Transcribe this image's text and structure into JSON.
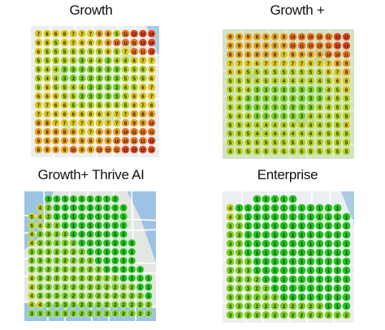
{
  "panels": [
    {
      "id": "growth",
      "title": "Growth",
      "map_theme": "city",
      "colors": {
        "land": "#eceff1",
        "road": "#ffffff",
        "green": "#cfe6c4",
        "water": "#a9cbe6"
      },
      "grid": [
        [
          7,
          6,
          6,
          6,
          7,
          7,
          7,
          9,
          8,
          5,
          11,
          13,
          14,
          14
        ],
        [
          6,
          6,
          5,
          6,
          7,
          6,
          6,
          7,
          8,
          10,
          11,
          11,
          13,
          14
        ],
        [
          6,
          5,
          5,
          5,
          5,
          5,
          5,
          5,
          6,
          5,
          7,
          11,
          11,
          12
        ],
        [
          5,
          5,
          5,
          5,
          5,
          3,
          4,
          4,
          3,
          4,
          4,
          6,
          7,
          7
        ],
        [
          5,
          4,
          4,
          3,
          3,
          3,
          3,
          3,
          3,
          3,
          5,
          5,
          5,
          6
        ],
        [
          5,
          4,
          4,
          3,
          3,
          3,
          3,
          3,
          3,
          3,
          5,
          5,
          5,
          6
        ],
        [
          5,
          6,
          5,
          5,
          4,
          4,
          3,
          3,
          3,
          3,
          4,
          5,
          6,
          7
        ],
        [
          6,
          6,
          6,
          5,
          5,
          3,
          3,
          3,
          3,
          3,
          5,
          6,
          6,
          7
        ],
        [
          7,
          7,
          6,
          6,
          5,
          5,
          5,
          5,
          5,
          5,
          5,
          6,
          7,
          6
        ],
        [
          7,
          7,
          6,
          6,
          6,
          6,
          6,
          6,
          6,
          7,
          7,
          8,
          8,
          8
        ],
        [
          8,
          8,
          7,
          7,
          7,
          7,
          7,
          7,
          7,
          7,
          8,
          9,
          9,
          10
        ],
        [
          9,
          8,
          8,
          8,
          8,
          7,
          7,
          8,
          8,
          9,
          10,
          11,
          11,
          11
        ],
        [
          9,
          8,
          8,
          9,
          9,
          9,
          8,
          9,
          9,
          10,
          10,
          11,
          11,
          12
        ],
        [
          8,
          8,
          9,
          9,
          10,
          9,
          9,
          10,
          10,
          11,
          12,
          13,
          12,
          12
        ]
      ]
    },
    {
      "id": "growth-plus",
      "title": "Growth +",
      "map_theme": "park",
      "colors": {
        "land": "#cfe3c6",
        "road": "#e6efe0",
        "green": "#b5d8a6",
        "water": "#a9cbe6"
      },
      "grid": [
        [
          9,
          9,
          9,
          8,
          9,
          8,
          8,
          10,
          10,
          10,
          10,
          11,
          12,
          12
        ],
        [
          9,
          9,
          8,
          8,
          8,
          8,
          9,
          10,
          11,
          10,
          10,
          11,
          12,
          12
        ],
        [
          8,
          8,
          8,
          8,
          8,
          8,
          7,
          8,
          9,
          8,
          9,
          10,
          10,
          11
        ],
        [
          7,
          7,
          7,
          6,
          7,
          7,
          7,
          7,
          7,
          6,
          7,
          7,
          8,
          9
        ],
        [
          6,
          6,
          5,
          5,
          5,
          5,
          5,
          5,
          5,
          5,
          5,
          6,
          7,
          8
        ],
        [
          5,
          5,
          5,
          4,
          5,
          4,
          4,
          4,
          4,
          4,
          4,
          5,
          6,
          6
        ],
        [
          5,
          5,
          4,
          3,
          3,
          3,
          3,
          3,
          3,
          3,
          3,
          4,
          5,
          6
        ],
        [
          5,
          4,
          3,
          3,
          3,
          3,
          3,
          3,
          3,
          3,
          3,
          4,
          5,
          5
        ],
        [
          5,
          4,
          3,
          3,
          3,
          3,
          3,
          3,
          3,
          3,
          4,
          4,
          5,
          5
        ],
        [
          5,
          4,
          4,
          3,
          3,
          3,
          3,
          3,
          3,
          4,
          4,
          4,
          5,
          5
        ],
        [
          5,
          5,
          4,
          4,
          4,
          4,
          4,
          4,
          4,
          4,
          4,
          5,
          5,
          6
        ],
        [
          5,
          5,
          5,
          4,
          4,
          4,
          4,
          4,
          4,
          4,
          4,
          5,
          5,
          5
        ],
        [
          5,
          5,
          5,
          5,
          5,
          5,
          5,
          5,
          5,
          5,
          5,
          5,
          5,
          5
        ],
        [
          4,
          5,
          5,
          5,
          5,
          5,
          5,
          5,
          5,
          5,
          5,
          5,
          5,
          5
        ]
      ]
    },
    {
      "id": "growth-plus-thrive-ai",
      "title": "Growth+ Thrive AI",
      "map_theme": "bay",
      "colors": {
        "land": "#e3e6e3",
        "road": "#ffffff",
        "green": "#cfe6c4",
        "water": "#9cc3e4"
      },
      "grid": [
        [
          0,
          0,
          1,
          1,
          1,
          1,
          1,
          1,
          1,
          1,
          1,
          0,
          0,
          0,
          0
        ],
        [
          0,
          4,
          2,
          1,
          1,
          1,
          1,
          1,
          1,
          1,
          1,
          1,
          0,
          0,
          0
        ],
        [
          5,
          4,
          2,
          1,
          1,
          1,
          1,
          1,
          1,
          1,
          1,
          1,
          0,
          0,
          0
        ],
        [
          5,
          4,
          2,
          2,
          1,
          1,
          1,
          1,
          1,
          1,
          1,
          1,
          0,
          0,
          0
        ],
        [
          4,
          3,
          3,
          2,
          2,
          1,
          1,
          1,
          1,
          1,
          1,
          1,
          0,
          0,
          0
        ],
        [
          4,
          3,
          3,
          2,
          2,
          2,
          1,
          1,
          1,
          1,
          1,
          1,
          1,
          0,
          0
        ],
        [
          3,
          3,
          3,
          2,
          2,
          2,
          2,
          1,
          1,
          1,
          1,
          1,
          1,
          0,
          0
        ],
        [
          3,
          3,
          3,
          2,
          2,
          2,
          2,
          2,
          1,
          1,
          1,
          1,
          1,
          0,
          0
        ],
        [
          3,
          3,
          2,
          2,
          2,
          2,
          2,
          2,
          2,
          1,
          1,
          1,
          1,
          1,
          0
        ],
        [
          4,
          3,
          2,
          2,
          2,
          2,
          2,
          2,
          2,
          2,
          2,
          1,
          1,
          1,
          1
        ],
        [
          4,
          3,
          3,
          2,
          2,
          2,
          2,
          2,
          2,
          2,
          2,
          2,
          2,
          1,
          1
        ],
        [
          4,
          3,
          3,
          3,
          2,
          2,
          2,
          2,
          2,
          2,
          2,
          2,
          2,
          2,
          1
        ],
        [
          4,
          4,
          3,
          3,
          3,
          3,
          2,
          2,
          2,
          2,
          2,
          2,
          2,
          2,
          2
        ],
        [
          3,
          3,
          3,
          3,
          3,
          2,
          2,
          2,
          2,
          2,
          2,
          2,
          2,
          2,
          2
        ]
      ]
    },
    {
      "id": "enterprise",
      "title": "Enterprise",
      "map_theme": "city",
      "colors": {
        "land": "#eceff1",
        "road": "#ffffff",
        "green": "#cfe6c4",
        "water": "#a9cbe6"
      },
      "grid": [
        [
          0,
          0,
          0,
          1,
          1,
          1,
          1,
          1,
          0,
          0,
          0,
          0,
          0,
          0
        ],
        [
          4,
          1,
          1,
          1,
          1,
          1,
          1,
          1,
          1,
          1,
          1,
          1,
          1,
          0
        ],
        [
          4,
          3,
          1,
          1,
          1,
          1,
          1,
          1,
          1,
          1,
          1,
          1,
          1,
          1
        ],
        [
          3,
          3,
          1,
          1,
          1,
          1,
          1,
          1,
          1,
          1,
          1,
          1,
          1,
          1
        ],
        [
          3,
          3,
          1,
          1,
          1,
          1,
          1,
          1,
          1,
          1,
          1,
          1,
          1,
          1
        ],
        [
          3,
          3,
          1,
          1,
          1,
          1,
          1,
          1,
          1,
          1,
          1,
          1,
          1,
          1
        ],
        [
          3,
          3,
          1,
          1,
          1,
          1,
          1,
          1,
          1,
          1,
          1,
          1,
          1,
          1
        ],
        [
          3,
          3,
          3,
          1,
          1,
          1,
          1,
          1,
          1,
          1,
          1,
          1,
          1,
          1
        ],
        [
          3,
          3,
          3,
          1,
          1,
          1,
          1,
          1,
          1,
          1,
          1,
          1,
          1,
          1
        ],
        [
          3,
          3,
          3,
          2,
          1,
          1,
          1,
          1,
          1,
          1,
          1,
          1,
          1,
          1
        ],
        [
          3,
          3,
          3,
          2,
          2,
          1,
          1,
          1,
          1,
          1,
          1,
          1,
          1,
          1
        ],
        [
          3,
          3,
          3,
          2,
          2,
          2,
          1,
          1,
          1,
          1,
          1,
          1,
          1,
          1
        ],
        [
          3,
          3,
          3,
          2,
          2,
          2,
          2,
          2,
          2,
          2,
          2,
          1,
          1,
          1
        ],
        [
          3,
          2,
          2,
          2,
          2,
          2,
          2,
          2,
          2,
          2,
          2,
          2,
          2,
          2
        ]
      ]
    }
  ],
  "rank_colors": {
    "top": "#22c21a",
    "good": "#7cd11f",
    "mid": "#b4d21d",
    "fair": "#dbc81a",
    "weak": "#e9a21b",
    "poor": "#e8741c",
    "bad": "#e24a1e"
  }
}
